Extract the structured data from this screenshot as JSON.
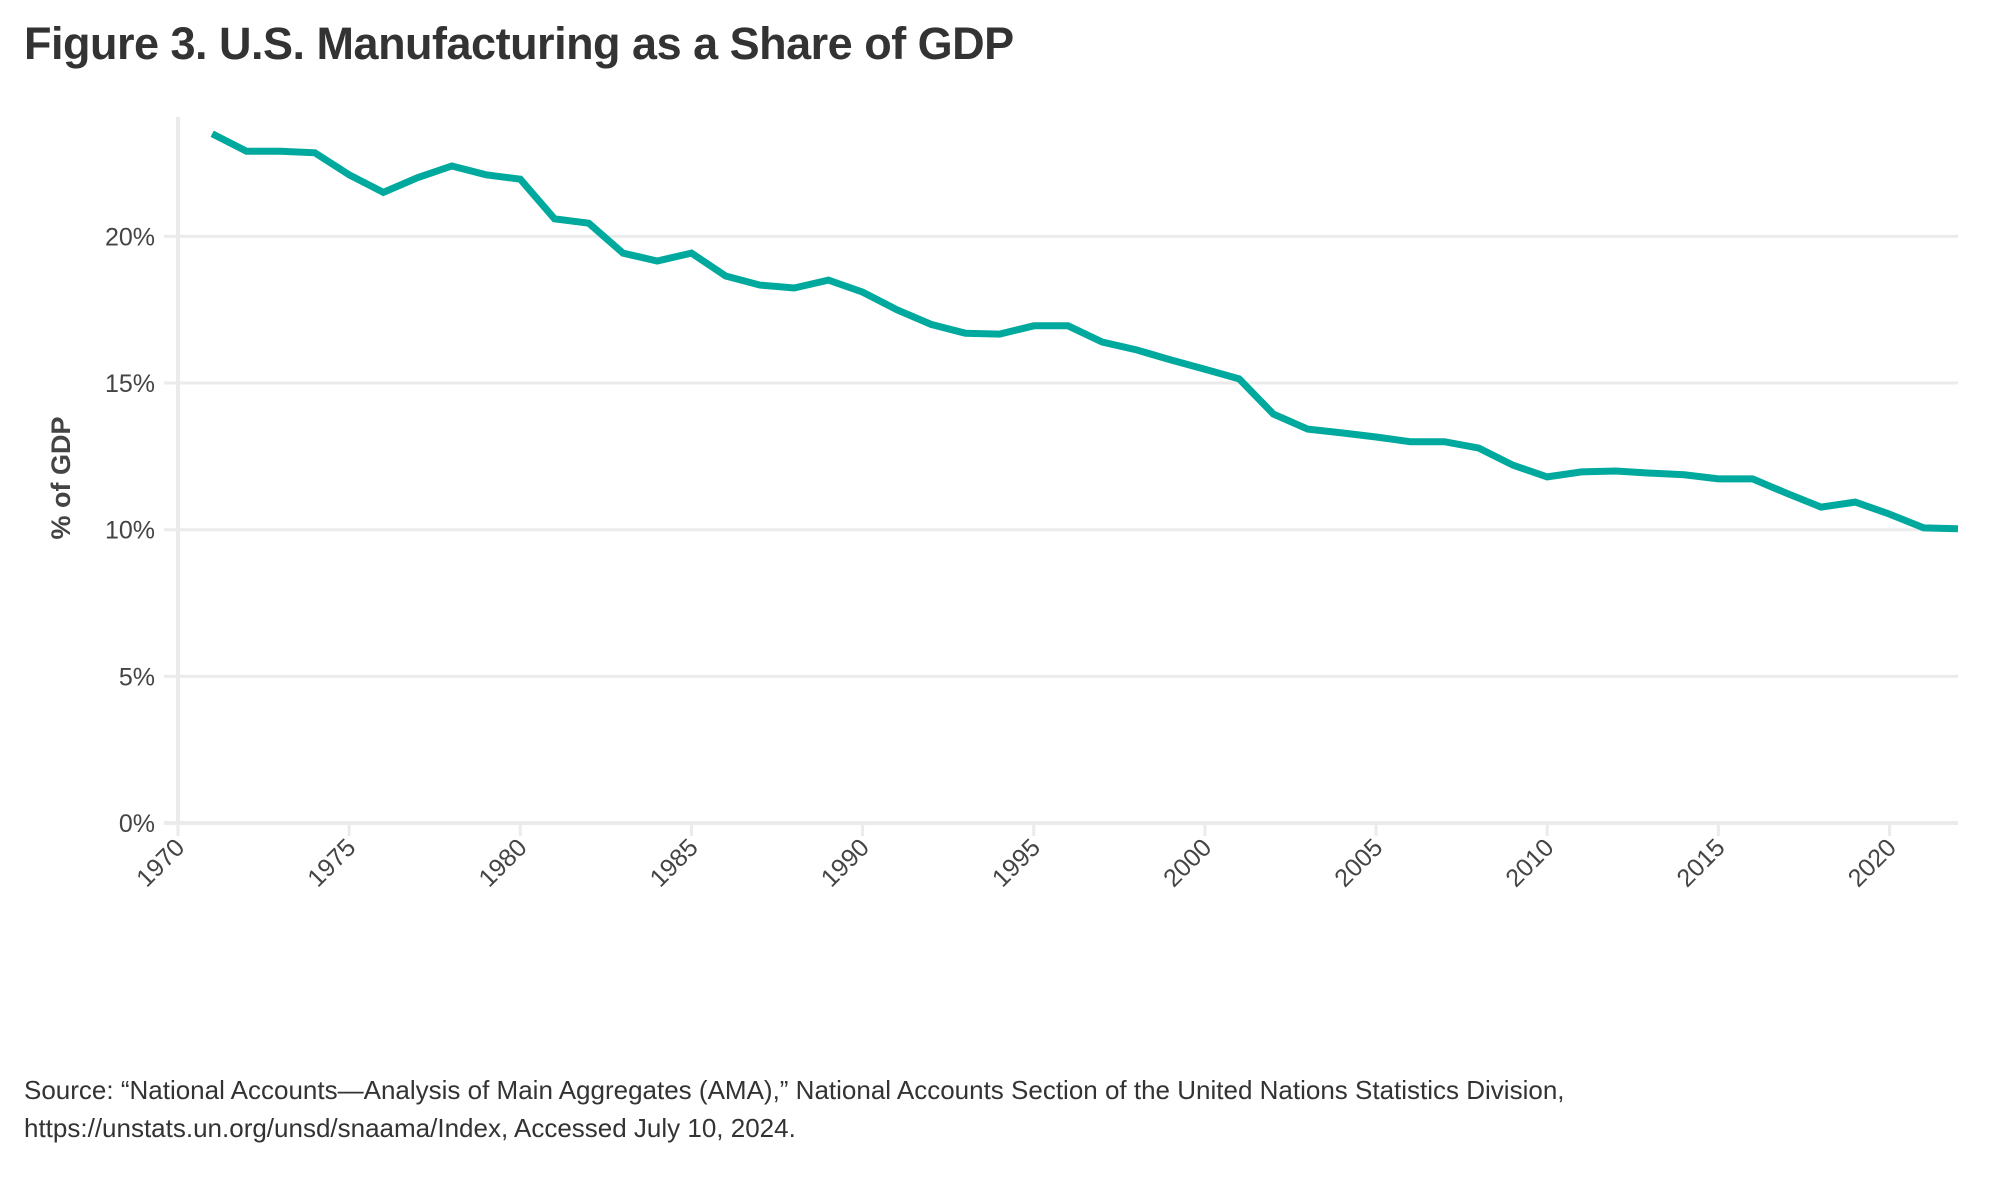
{
  "figure": {
    "title": "Figure 3. U.S. Manufacturing as a Share of GDP",
    "source_lines": [
      "Source: “National Accounts—Analysis of Main Aggregates (AMA),” National Accounts Section of the United Nations Statistics Division,",
      "https://unstats.un.org/unsd/snaama/Index, Accessed July 10, 2024."
    ]
  },
  "chart_data": {
    "type": "line",
    "title": "Figure 3. U.S. Manufacturing as a Share of GDP",
    "xlabel": "",
    "ylabel": "% of GDP",
    "xlim": [
      1970,
      2022
    ],
    "ylim": [
      0,
      24.07
    ],
    "grid": "horizontal",
    "legend": "none",
    "x_ticks": [
      1970,
      1975,
      1980,
      1985,
      1990,
      1995,
      2000,
      2005,
      2010,
      2015,
      2020
    ],
    "x_tick_labels": [
      "1970",
      "1975",
      "1980",
      "1985",
      "1990",
      "1995",
      "2000",
      "2005",
      "2010",
      "2015",
      "2020"
    ],
    "y_ticks": [
      0,
      5,
      10,
      15,
      20
    ],
    "y_tick_labels": [
      "0%",
      "5%",
      "10%",
      "15%",
      "20%"
    ],
    "colors": {
      "series": "#00a99d",
      "grid": "#ebebeb",
      "text": "#444444"
    },
    "series": [
      {
        "name": "Manufacturing share of GDP",
        "x": [
          1971,
          1972,
          1973,
          1974,
          1975,
          1976,
          1977,
          1978,
          1979,
          1980,
          1981,
          1982,
          1983,
          1984,
          1985,
          1986,
          1987,
          1988,
          1989,
          1990,
          1991,
          1992,
          1993,
          1994,
          1995,
          1996,
          1997,
          1998,
          1999,
          2000,
          2001,
          2002,
          2003,
          2004,
          2005,
          2006,
          2007,
          2008,
          2009,
          2010,
          2011,
          2012,
          2013,
          2014,
          2015,
          2016,
          2017,
          2018,
          2019,
          2020,
          2021,
          2022
        ],
        "values": [
          23.5,
          22.9,
          22.9,
          22.85,
          22.1,
          21.5,
          22.0,
          22.4,
          22.1,
          21.95,
          20.6,
          20.45,
          19.43,
          19.16,
          19.43,
          18.65,
          18.34,
          18.24,
          18.51,
          18.1,
          17.5,
          17.0,
          16.7,
          16.67,
          16.95,
          16.95,
          16.4,
          16.13,
          15.79,
          15.47,
          15.14,
          13.94,
          13.43,
          13.3,
          13.16,
          13.0,
          13.0,
          12.78,
          12.2,
          11.8,
          11.97,
          12.0,
          11.93,
          11.87,
          11.73,
          11.73,
          11.24,
          10.77,
          10.94,
          10.53,
          10.06,
          10.03
        ]
      }
    ]
  }
}
